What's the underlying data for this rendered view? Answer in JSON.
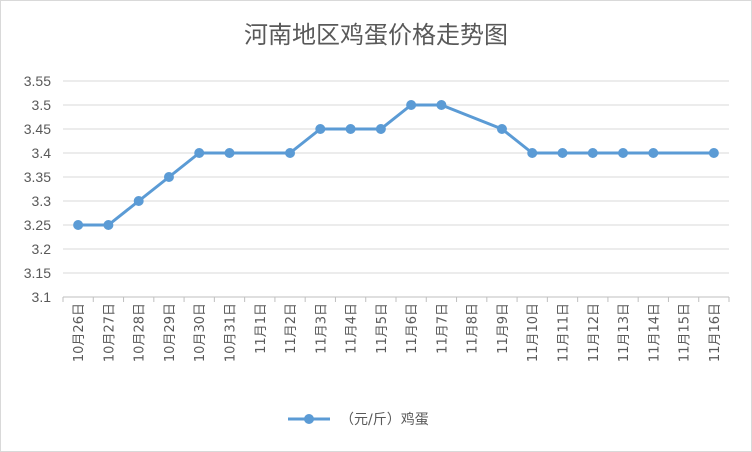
{
  "chart_data": {
    "type": "line",
    "title": "河南地区鸡蛋价格走势图",
    "xlabel": "",
    "ylabel": "",
    "categories": [
      "10月26日",
      "10月27日",
      "10月28日",
      "10月29日",
      "10月30日",
      "10月31日",
      "11月1日",
      "11月2日",
      "11月3日",
      "11月4日",
      "11月5日",
      "11月6日",
      "11月7日",
      "11月8日",
      "11月9日",
      "11月10日",
      "11月11日",
      "11月12日",
      "11月13日",
      "11月14日",
      "11月15日",
      "11月16日"
    ],
    "series": [
      {
        "name": "（元/斤）鸡蛋",
        "color": "#5b9bd5",
        "values": [
          3.25,
          3.25,
          3.3,
          3.35,
          3.4,
          3.4,
          null,
          3.4,
          3.45,
          3.45,
          3.45,
          3.5,
          3.5,
          null,
          3.45,
          3.4,
          3.4,
          3.4,
          3.4,
          3.4,
          null,
          3.4
        ]
      }
    ],
    "ylim": [
      3.1,
      3.55
    ],
    "yticks": [
      "3.1",
      "3.15",
      "3.2",
      "3.25",
      "3.3",
      "3.35",
      "3.4",
      "3.45",
      "3.5",
      "3.55"
    ],
    "grid": "horizontal",
    "legend": "bottom"
  }
}
